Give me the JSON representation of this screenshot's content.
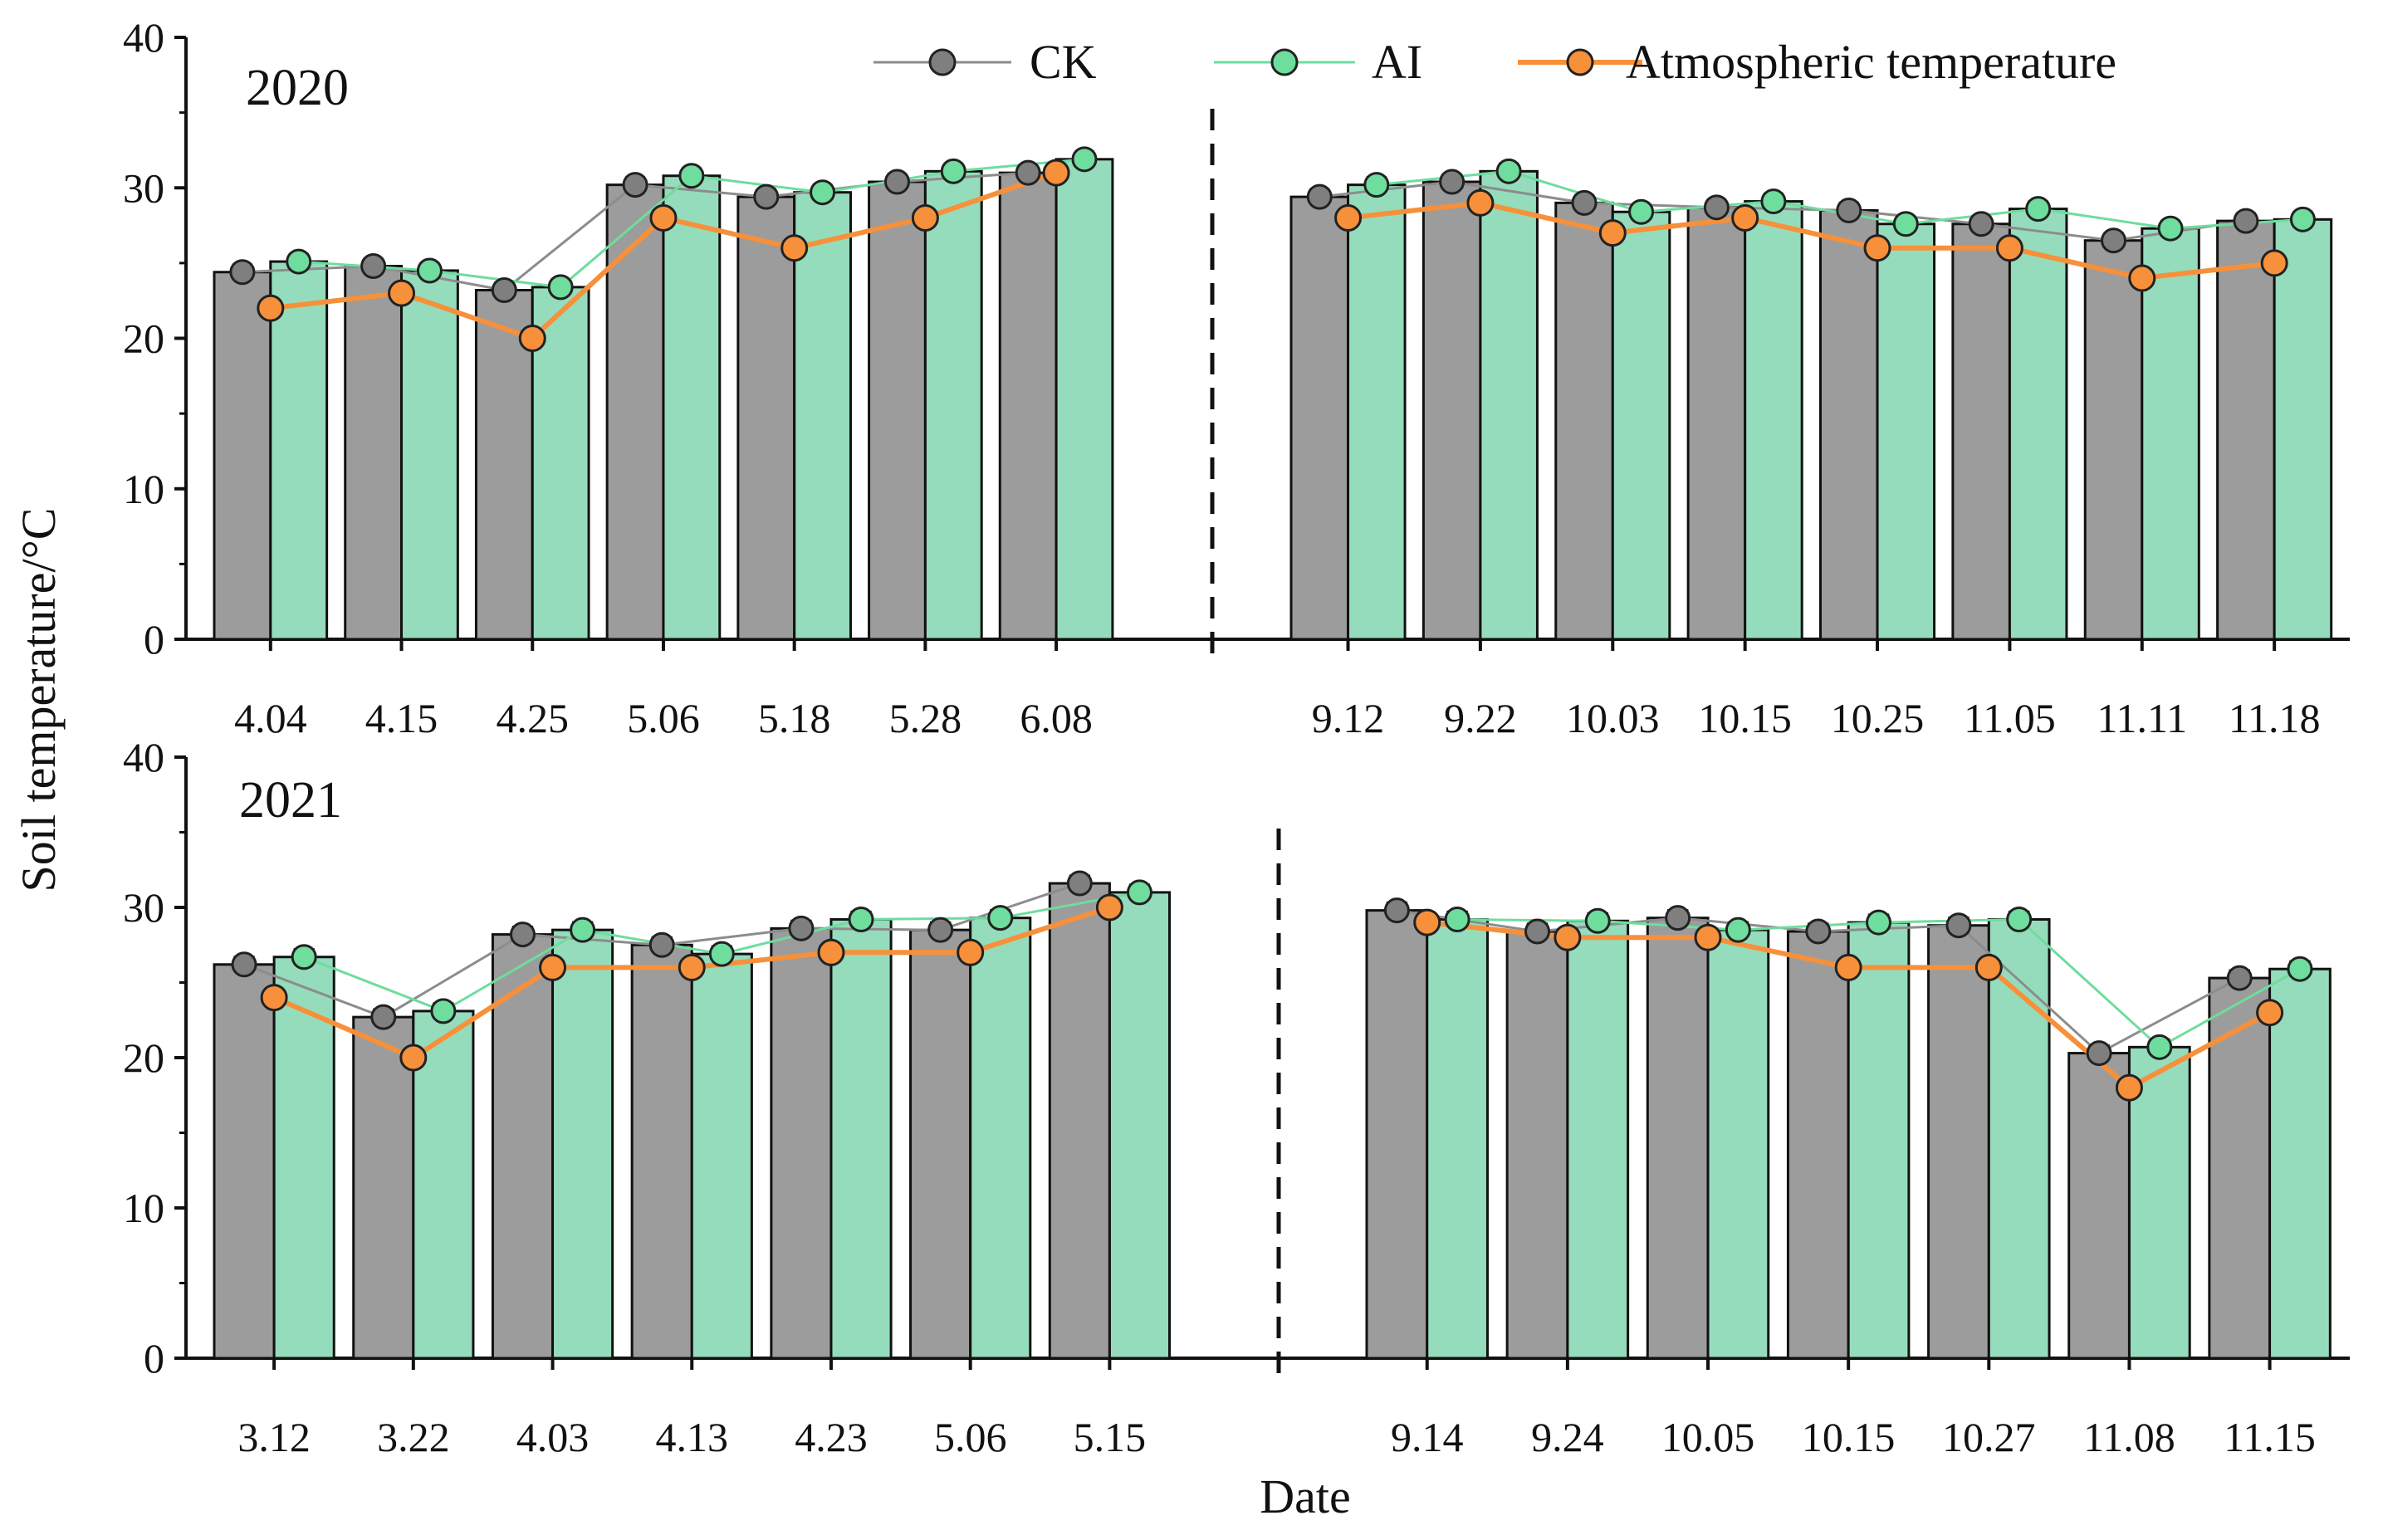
{
  "figure": {
    "ylabel": "Soil temperature/°C",
    "xlabel": "Date"
  },
  "legend": {
    "placement": "top",
    "items": [
      {
        "label": "CK",
        "color": "#808080"
      },
      {
        "label": "AI",
        "color": "#86DDB0"
      },
      {
        "label": "Atmospheric temperature",
        "color": "#F7903A"
      }
    ]
  },
  "colors": {
    "ck_bar": "#9C9C9C",
    "ck_marker": "#7F7F7F",
    "ai_bar": "#95DCBC",
    "ai_marker": "#6EDD9D",
    "atm": "#F7903A",
    "axis": "#111111"
  },
  "chart_data": [
    {
      "type": "bar",
      "title": "2020",
      "ylim": [
        0,
        40
      ],
      "yticks": [
        0,
        10,
        20,
        30,
        40
      ],
      "grid": false,
      "groups": [
        {
          "categories": [
            "4.04",
            "4.15",
            "4.25",
            "5.06",
            "5.18",
            "5.28",
            "6.08"
          ],
          "series": [
            {
              "name": "CK",
              "values": [
                24.4,
                24.8,
                23.2,
                30.2,
                29.4,
                30.4,
                31.0
              ]
            },
            {
              "name": "AI",
              "values": [
                25.1,
                24.5,
                23.4,
                30.8,
                29.7,
                31.1,
                31.9
              ]
            },
            {
              "name": "Atmospheric temperature",
              "values": [
                22,
                23,
                20,
                28,
                26,
                28,
                31
              ]
            }
          ]
        },
        {
          "categories": [
            "9.12",
            "9.22",
            "10.03",
            "10.15",
            "10.25",
            "11.05",
            "11.11",
            "11.18"
          ],
          "series": [
            {
              "name": "CK",
              "values": [
                29.4,
                30.4,
                29.0,
                28.7,
                28.5,
                27.6,
                26.5,
                27.8
              ]
            },
            {
              "name": "AI",
              "values": [
                30.2,
                31.1,
                28.4,
                29.1,
                27.6,
                28.6,
                27.3,
                27.9
              ]
            },
            {
              "name": "Atmospheric temperature",
              "values": [
                28,
                29,
                27,
                28,
                26,
                26,
                24,
                25
              ]
            }
          ]
        }
      ]
    },
    {
      "type": "bar",
      "title": "2021",
      "ylim": [
        0,
        40
      ],
      "yticks": [
        0,
        10,
        20,
        30,
        40
      ],
      "grid": false,
      "groups": [
        {
          "categories": [
            "3.12",
            "3.22",
            "4.03",
            "4.13",
            "4.23",
            "5.06",
            "5.15"
          ],
          "series": [
            {
              "name": "CK",
              "values": [
                26.2,
                22.7,
                28.2,
                27.5,
                28.6,
                28.5,
                31.6
              ]
            },
            {
              "name": "AI",
              "values": [
                26.7,
                23.1,
                28.5,
                26.9,
                29.2,
                29.3,
                31.0
              ]
            },
            {
              "name": "Atmospheric temperature",
              "values": [
                24,
                20,
                26,
                26,
                27,
                27,
                30
              ]
            }
          ]
        },
        {
          "categories": [
            "9.14",
            "9.24",
            "10.05",
            "10.15",
            "10.27",
            "11.08",
            "11.15"
          ],
          "series": [
            {
              "name": "CK",
              "values": [
                29.8,
                28.4,
                29.3,
                28.4,
                28.8,
                20.3,
                25.3
              ]
            },
            {
              "name": "AI",
              "values": [
                29.2,
                29.1,
                28.5,
                29.0,
                29.2,
                20.7,
                25.9
              ]
            },
            {
              "name": "Atmospheric temperature",
              "values": [
                29,
                28,
                28,
                26,
                26,
                18,
                23
              ]
            }
          ]
        }
      ]
    }
  ]
}
